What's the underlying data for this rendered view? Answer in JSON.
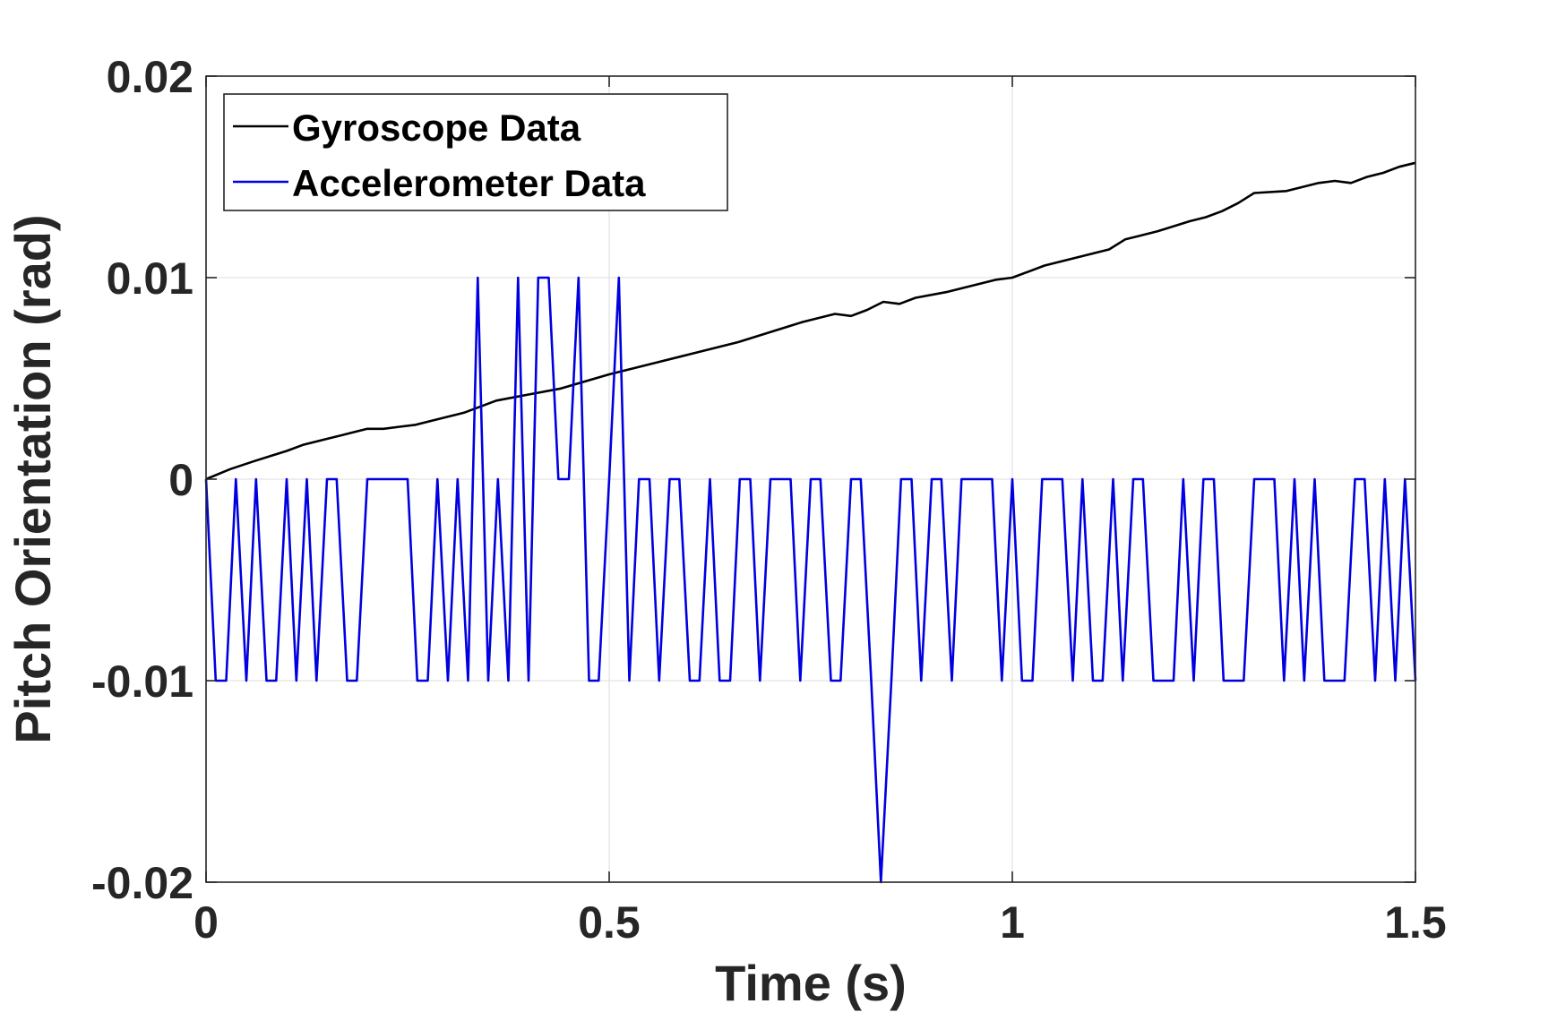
{
  "chart_data": {
    "type": "line",
    "title": "",
    "xlabel": "Time (s)",
    "ylabel": "Pitch Orientation (rad)",
    "xlim": [
      0,
      1.5
    ],
    "ylim": [
      -0.02,
      0.02
    ],
    "xticks": [
      0,
      0.5,
      1,
      1.5
    ],
    "xtick_labels": [
      "0",
      "0.5",
      "1",
      "1.5"
    ],
    "yticks": [
      -0.02,
      -0.01,
      0,
      0.01,
      0.02
    ],
    "ytick_labels": [
      "-0.02",
      "-0.01",
      "0",
      "0.01",
      "0.02"
    ],
    "grid": true,
    "legend": {
      "placement": "top-left"
    },
    "series": [
      {
        "name": "Gyroscope Data",
        "color": "#000000",
        "x": [
          0,
          0.03,
          0.06,
          0.1,
          0.12,
          0.15,
          0.18,
          0.2,
          0.22,
          0.24,
          0.26,
          0.3,
          0.32,
          0.36,
          0.4,
          0.44,
          0.5,
          0.56,
          0.6,
          0.66,
          0.7,
          0.74,
          0.78,
          0.8,
          0.82,
          0.84,
          0.86,
          0.88,
          0.92,
          0.95,
          0.98,
          1.0,
          1.02,
          1.04,
          1.06,
          1.08,
          1.12,
          1.14,
          1.18,
          1.22,
          1.24,
          1.26,
          1.28,
          1.3,
          1.34,
          1.38,
          1.4,
          1.42,
          1.44,
          1.46,
          1.48,
          1.5
        ],
        "y": [
          0,
          0.0005,
          0.0009,
          0.0014,
          0.0017,
          0.002,
          0.0023,
          0.0025,
          0.0025,
          0.0026,
          0.0027,
          0.0031,
          0.0033,
          0.0039,
          0.0042,
          0.0045,
          0.0052,
          0.0058,
          0.0062,
          0.0068,
          0.0073,
          0.0078,
          0.0082,
          0.0081,
          0.0084,
          0.0088,
          0.0087,
          0.009,
          0.0093,
          0.0096,
          0.0099,
          0.01,
          0.0103,
          0.0106,
          0.0108,
          0.011,
          0.0114,
          0.0119,
          0.0123,
          0.0128,
          0.013,
          0.0133,
          0.0137,
          0.0142,
          0.0143,
          0.0147,
          0.0148,
          0.0147,
          0.015,
          0.0152,
          0.0155,
          0.0157
        ]
      },
      {
        "name": "Accelerometer Data",
        "color": "#0000e0",
        "x": [
          0,
          0.012,
          0.025,
          0.037,
          0.05,
          0.062,
          0.075,
          0.087,
          0.1,
          0.112,
          0.125,
          0.137,
          0.15,
          0.162,
          0.175,
          0.187,
          0.2,
          0.212,
          0.225,
          0.237,
          0.25,
          0.262,
          0.275,
          0.287,
          0.3,
          0.312,
          0.325,
          0.337,
          0.35,
          0.362,
          0.375,
          0.387,
          0.4,
          0.412,
          0.425,
          0.437,
          0.45,
          0.462,
          0.475,
          0.487,
          0.5,
          0.512,
          0.525,
          0.537,
          0.55,
          0.562,
          0.575,
          0.587,
          0.6,
          0.612,
          0.625,
          0.637,
          0.65,
          0.662,
          0.675,
          0.687,
          0.7,
          0.712,
          0.725,
          0.737,
          0.75,
          0.762,
          0.775,
          0.787,
          0.8,
          0.812,
          0.825,
          0.837,
          0.85,
          0.862,
          0.875,
          0.887,
          0.9,
          0.912,
          0.925,
          0.937,
          0.95,
          0.962,
          0.975,
          0.987,
          1.0,
          1.012,
          1.025,
          1.037,
          1.05,
          1.062,
          1.075,
          1.087,
          1.1,
          1.112,
          1.125,
          1.137,
          1.15,
          1.162,
          1.175,
          1.187,
          1.2,
          1.212,
          1.225,
          1.237,
          1.25,
          1.262,
          1.275,
          1.287,
          1.3,
          1.312,
          1.325,
          1.337,
          1.35,
          1.362,
          1.375,
          1.387,
          1.4,
          1.412,
          1.425,
          1.437,
          1.45,
          1.462,
          1.475,
          1.487,
          1.5
        ],
        "y": [
          0,
          -0.01,
          -0.01,
          0,
          -0.01,
          0,
          -0.01,
          -0.01,
          0,
          -0.01,
          0,
          -0.01,
          0,
          0,
          -0.01,
          -0.01,
          0,
          0,
          0,
          0,
          0,
          -0.01,
          -0.01,
          0,
          -0.01,
          0,
          -0.01,
          0.01,
          -0.01,
          0,
          -0.01,
          0.01,
          -0.01,
          0.01,
          0.01,
          0,
          0,
          0.01,
          -0.01,
          -0.01,
          0,
          0.01,
          -0.01,
          0,
          0,
          -0.01,
          0,
          0,
          -0.01,
          -0.01,
          0,
          -0.01,
          -0.01,
          0,
          0,
          -0.01,
          0,
          0,
          0,
          -0.01,
          0,
          0,
          -0.01,
          -0.01,
          0,
          0,
          -0.01,
          -0.02,
          -0.01,
          0,
          0,
          -0.01,
          0,
          0,
          -0.01,
          0,
          0,
          0,
          0,
          -0.01,
          0,
          -0.01,
          -0.01,
          0,
          0,
          0,
          -0.01,
          0,
          -0.01,
          -0.01,
          0,
          -0.01,
          0,
          0,
          -0.01,
          -0.01,
          -0.01,
          0,
          -0.01,
          0,
          0,
          -0.01,
          -0.01,
          -0.01,
          0,
          0,
          0,
          -0.01,
          0,
          -0.01,
          0,
          -0.01,
          -0.01,
          -0.01,
          0,
          0,
          -0.01,
          0,
          -0.01,
          0,
          -0.01
        ]
      }
    ]
  }
}
